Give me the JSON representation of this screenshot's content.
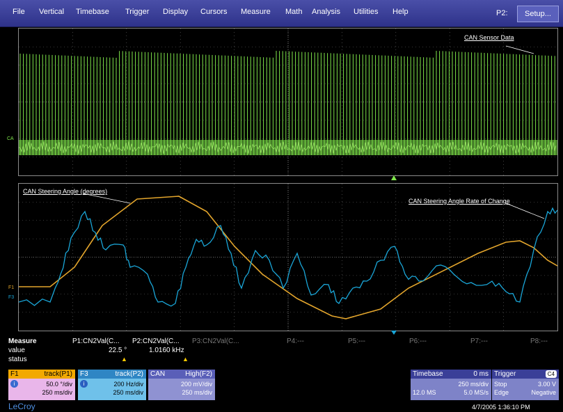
{
  "menu": {
    "items": [
      "File",
      "Vertical",
      "Timebase",
      "Trigger",
      "Display",
      "Cursors",
      "Measure",
      "Math",
      "Analysis",
      "Utilities",
      "Help"
    ],
    "p2_label": "P2:",
    "setup_label": "Setup..."
  },
  "colors": {
    "green": "#7fe64a",
    "blue": "#1aa6d8",
    "orange": "#e3a52c",
    "grid": "#6e6e6e"
  },
  "top_grid": {
    "trace_label": "CAN Sensor Data",
    "channel_tag": "CA"
  },
  "bottom_grid": {
    "trace_label_left": "CAN Steering Angle (degrees)",
    "trace_label_right": "CAN Steering Angle Rate of Change",
    "f1_tag": "F1",
    "f3_tag": "F3"
  },
  "measure": {
    "title": "Measure",
    "row_value": "value",
    "row_status": "status",
    "p1": "P1:CN2Val(C...",
    "p2": "P2:CN2Val(C...",
    "p3": "P3:CN2Val(C...",
    "p4": "P4:---",
    "p5": "P5:---",
    "p6": "P6:---",
    "p7": "P7:---",
    "p8": "P8:---",
    "p1_value": "22.5 °",
    "p2_value": "1.0160 kHz"
  },
  "boxes": {
    "f1": {
      "name": "F1",
      "mode": "track(P1)",
      "line1": "50.0 °/div",
      "line2": "250 ms/div"
    },
    "f3": {
      "name": "F3",
      "mode": "track(P2)",
      "line1": "200 Hz/div",
      "line2": "250 ms/div"
    },
    "can": {
      "name": "CAN",
      "mode": "High(F2)",
      "line1": "200 mV/div",
      "line2": "250 ms/div"
    },
    "timebase": {
      "name": "Timebase",
      "delay": "0 ms",
      "sdiv": "250 ms/div",
      "samples": "12.0 MS",
      "rate": "5.0 MS/s"
    },
    "trigger": {
      "name": "Trigger",
      "chan": "C4",
      "mode": "Stop",
      "level": "3.00 V",
      "type": "Edge",
      "slope": "Negative"
    }
  },
  "logo": "LeCroy",
  "datetime": "4/7/2005 1:36:10 PM"
}
